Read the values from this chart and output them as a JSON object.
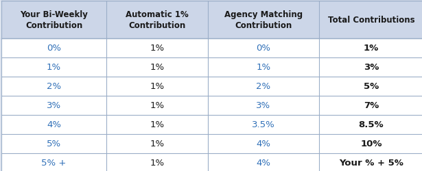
{
  "col_headers": [
    "Your Bi-Weekly\nContribution",
    "Automatic 1%\nContribution",
    "Agency Matching\nContribution",
    "Total Contributions"
  ],
  "rows": [
    [
      "0%",
      "1%",
      "0%",
      "1%"
    ],
    [
      "1%",
      "1%",
      "1%",
      "3%"
    ],
    [
      "2%",
      "1%",
      "2%",
      "5%"
    ],
    [
      "3%",
      "1%",
      "3%",
      "7%"
    ],
    [
      "4%",
      "1%",
      "3.5%",
      "8.5%"
    ],
    [
      "5%",
      "1%",
      "4%",
      "10%"
    ],
    [
      "5% +",
      "1%",
      "4%",
      "Your % + 5%"
    ]
  ],
  "header_bg": "#ccd6e8",
  "row_bg": "#ffffff",
  "col_blue_color": "#3070b8",
  "col_black_color": "#1a1a1a",
  "header_text_color": "#1a1a1a",
  "border_color": "#9baec8",
  "figsize": [
    6.15,
    2.51
  ],
  "dpi": 100,
  "fig_bg": "#dde4ef"
}
